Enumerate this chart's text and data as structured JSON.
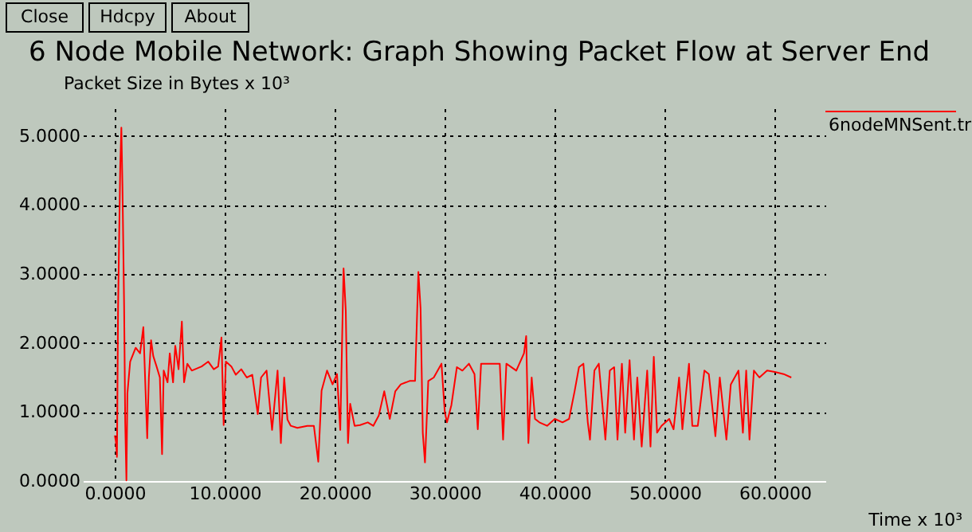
{
  "chart_data": {
    "type": "line",
    "title": "6 Node Mobile Network: Graph Showing Packet Flow at Server End",
    "ylabel": "Packet Size in Bytes x 10³",
    "xlabel": "Time x 10³",
    "annotations": [
      "Close",
      "Hdcpy",
      "About"
    ],
    "legend": "top right",
    "grid": true,
    "line_style": "solid",
    "marker": "none",
    "xlim": [
      -2.9,
      64.6
    ],
    "ylim": [
      0,
      5.4
    ],
    "xticks": [
      {
        "value": 0,
        "label": "0.0000"
      },
      {
        "value": 10,
        "label": "10.0000"
      },
      {
        "value": 20,
        "label": "20.0000"
      },
      {
        "value": 30,
        "label": "30.0000"
      },
      {
        "value": 40,
        "label": "40.0000"
      },
      {
        "value": 50,
        "label": "50.0000"
      },
      {
        "value": 60,
        "label": "60.0000"
      }
    ],
    "yticks": [
      {
        "value": 0,
        "label": "0.0000"
      },
      {
        "value": 1,
        "label": "1.0000"
      },
      {
        "value": 2,
        "label": "2.0000"
      },
      {
        "value": 3,
        "label": "3.0000"
      },
      {
        "value": 4,
        "label": "4.0000"
      },
      {
        "value": 5,
        "label": "5.0000"
      }
    ],
    "series": [
      {
        "name": "6nodeMNSent.tr",
        "color": "#ff0000",
        "x": [
          0,
          0.1,
          0.2,
          0.3,
          0.4,
          0.5,
          0.6,
          0.7,
          0.85,
          0.95,
          1.06,
          1.15,
          1.4,
          1.7,
          1.9,
          2.3,
          2.6,
          2.8,
          2.95,
          3.1,
          3.3,
          3.5,
          3.8,
          4.1,
          4.3,
          4.45,
          4.8,
          5.0,
          5.3,
          5.5,
          5.8,
          6.1,
          6.3,
          6.6,
          7.0,
          7.9,
          8.5,
          9.0,
          9.4,
          9.7,
          9.9,
          10.1,
          10.6,
          11.0,
          11.5,
          12.0,
          12.5,
          13.0,
          13.3,
          13.8,
          14.3,
          14.8,
          15.1,
          15.4,
          15.7,
          16.0,
          16.6,
          17.5,
          18.1,
          18.5,
          18.8,
          19.3,
          19.8,
          20.2,
          20.5,
          20.8,
          21.0,
          21.2,
          21.4,
          21.8,
          22.3,
          23.0,
          23.5,
          24.0,
          24.5,
          25.0,
          25.5,
          26.0,
          26.8,
          27.3,
          27.6,
          27.8,
          28.0,
          28.2,
          28.5,
          29.0,
          29.7,
          30.0,
          30.2,
          30.6,
          31.1,
          31.6,
          32.2,
          32.7,
          33.0,
          33.3,
          34.0,
          35.0,
          35.3,
          35.6,
          36.5,
          37.2,
          37.4,
          37.6,
          37.9,
          38.2,
          38.6,
          39.3,
          40.0,
          40.7,
          41.3,
          41.8,
          42.2,
          42.6,
          43.0,
          43.2,
          43.6,
          44.0,
          44.6,
          45.0,
          45.4,
          45.7,
          46.1,
          46.4,
          46.8,
          47.2,
          47.5,
          47.9,
          48.4,
          48.7,
          49.0,
          49.3,
          49.7,
          50.4,
          50.8,
          51.3,
          51.6,
          52.2,
          52.5,
          53.0,
          53.6,
          54.0,
          54.6,
          55.0,
          55.6,
          56.0,
          56.7,
          57.1,
          57.4,
          57.7,
          58.1,
          58.6,
          59.3,
          60.0,
          60.8,
          61.5
        ],
        "values": [
          0.66,
          0.58,
          0.35,
          2.5,
          3.54,
          4.58,
          5.12,
          4.27,
          2.54,
          0.85,
          0.01,
          1.27,
          1.73,
          1.85,
          1.93,
          1.85,
          2.23,
          1.3,
          0.62,
          1.5,
          2.04,
          1.81,
          1.66,
          1.5,
          0.39,
          1.6,
          1.43,
          1.85,
          1.43,
          1.96,
          1.62,
          2.31,
          1.43,
          1.7,
          1.6,
          1.66,
          1.73,
          1.62,
          1.66,
          2.08,
          0.81,
          1.73,
          1.66,
          1.54,
          1.62,
          1.5,
          1.54,
          0.97,
          1.5,
          1.6,
          0.74,
          1.6,
          0.55,
          1.5,
          0.89,
          0.8,
          0.77,
          0.8,
          0.8,
          0.28,
          1.31,
          1.6,
          1.4,
          1.55,
          0.74,
          3.08,
          2.47,
          0.55,
          1.12,
          0.8,
          0.81,
          0.85,
          0.8,
          0.95,
          1.3,
          0.9,
          1.3,
          1.4,
          1.45,
          1.45,
          3.03,
          2.5,
          0.7,
          0.27,
          1.45,
          1.5,
          1.7,
          1.0,
          0.85,
          1.1,
          1.65,
          1.6,
          1.7,
          1.55,
          0.75,
          1.7,
          1.7,
          1.7,
          0.6,
          1.7,
          1.6,
          1.85,
          2.1,
          0.55,
          1.5,
          0.9,
          0.85,
          0.8,
          0.9,
          0.85,
          0.9,
          1.3,
          1.65,
          1.7,
          0.85,
          0.6,
          1.6,
          1.7,
          0.6,
          1.6,
          1.65,
          0.6,
          1.7,
          0.7,
          1.75,
          0.6,
          1.5,
          0.5,
          1.6,
          0.5,
          1.8,
          0.7,
          0.8,
          0.9,
          0.75,
          1.5,
          0.75,
          1.7,
          0.8,
          0.8,
          1.6,
          1.55,
          0.65,
          1.5,
          0.6,
          1.4,
          1.6,
          0.7,
          1.6,
          0.6,
          1.6,
          1.5,
          1.6,
          1.58,
          1.55,
          1.5
        ]
      }
    ]
  }
}
